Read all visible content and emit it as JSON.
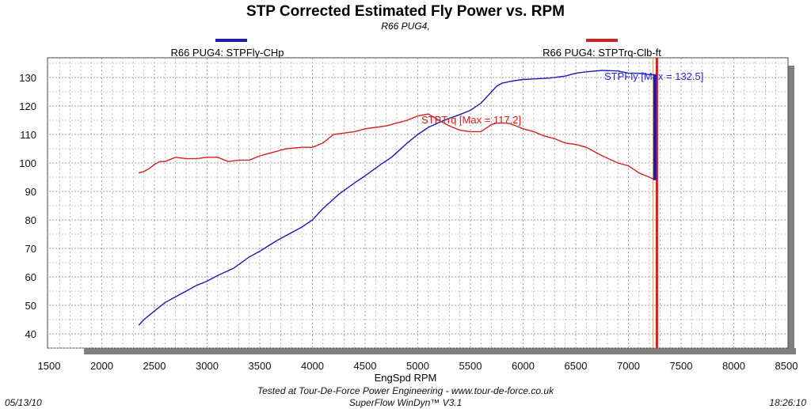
{
  "chart_data": {
    "type": "line",
    "title": "STP Corrected Estimated Fly Power vs. RPM",
    "subtitle": "R66 PUG4,",
    "xlabel": "EngSpd RPM",
    "ylabel": "",
    "xlim": [
      1500,
      8500
    ],
    "ylim": [
      33,
      137
    ],
    "xticks": [
      "1500",
      "2000",
      "2500",
      "3000",
      "3500",
      "4000",
      "4500",
      "5000",
      "5500",
      "6000",
      "6500",
      "7000",
      "7500",
      "8000",
      "8500"
    ],
    "yticks": [
      "40",
      "50",
      "60",
      "70",
      "80",
      "90",
      "100",
      "110",
      "120",
      "130"
    ],
    "grid": true,
    "legend_placement": "top",
    "series": [
      {
        "name": "R66 PUG4: STPFly-CHp",
        "color": "#1a1ab8",
        "annotation": "STPFly [Max = 132.5]",
        "x": [
          2350,
          2400,
          2500,
          2600,
          2750,
          2900,
          3000,
          3100,
          3250,
          3400,
          3500,
          3650,
          3750,
          3900,
          4000,
          4100,
          4250,
          4400,
          4500,
          4650,
          4750,
          4900,
          5000,
          5100,
          5250,
          5400,
          5500,
          5600,
          5700,
          5750,
          5800,
          5900,
          6000,
          6100,
          6250,
          6400,
          6500,
          6600,
          6750,
          6900,
          7000,
          7100,
          7200,
          7260,
          7260
        ],
        "y": [
          43,
          45,
          48,
          51,
          54,
          57,
          58.5,
          60.5,
          63,
          67,
          69,
          72.5,
          74.5,
          77.5,
          80,
          84,
          89,
          93,
          95.5,
          99.5,
          102,
          107,
          110,
          112.5,
          115,
          117,
          118.5,
          121,
          125,
          127,
          128,
          128.8,
          129.3,
          129.5,
          129.8,
          130.5,
          131.5,
          132,
          132.5,
          132.3,
          131.5,
          131.5,
          131,
          131,
          94
        ]
      },
      {
        "name": "R66 PUG4: STPTrq-Clb-ft",
        "color": "#d42020",
        "annotation": "STPTrq [Max = 117.2]",
        "x": [
          2350,
          2400,
          2450,
          2500,
          2550,
          2600,
          2700,
          2800,
          2900,
          3000,
          3100,
          3200,
          3300,
          3400,
          3500,
          3600,
          3750,
          3900,
          4000,
          4100,
          4200,
          4300,
          4400,
          4500,
          4600,
          4700,
          4800,
          4900,
          5000,
          5100,
          5200,
          5300,
          5400,
          5500,
          5600,
          5700,
          5750,
          5800,
          5850,
          5900,
          6000,
          6100,
          6200,
          6300,
          6400,
          6500,
          6600,
          6750,
          6900,
          7000,
          7100,
          7200,
          7250
        ],
        "y": [
          96.5,
          97,
          98,
          99.5,
          100.5,
          100.5,
          102,
          101.5,
          101.5,
          102,
          102,
          100.5,
          101,
          101,
          102.5,
          103.5,
          105,
          105.5,
          105.5,
          107,
          110,
          110.5,
          111,
          112,
          112.5,
          113,
          114,
          115,
          116.5,
          117.2,
          115,
          113,
          111.5,
          111,
          111,
          113.5,
          114,
          114,
          114,
          113.5,
          112,
          111,
          109.5,
          108.5,
          107,
          106.5,
          105.5,
          102.5,
          100,
          99,
          96.5,
          95,
          94
        ]
      }
    ],
    "cursor_rpm": 7270
  },
  "footer": {
    "date": "05/13/10",
    "time": "18:26:10",
    "tested_at": "Tested at Tour-De-Force Power Engineering - www.tour-de-force.co.uk",
    "software": "SuperFlow WinDyn™ V3.1"
  }
}
